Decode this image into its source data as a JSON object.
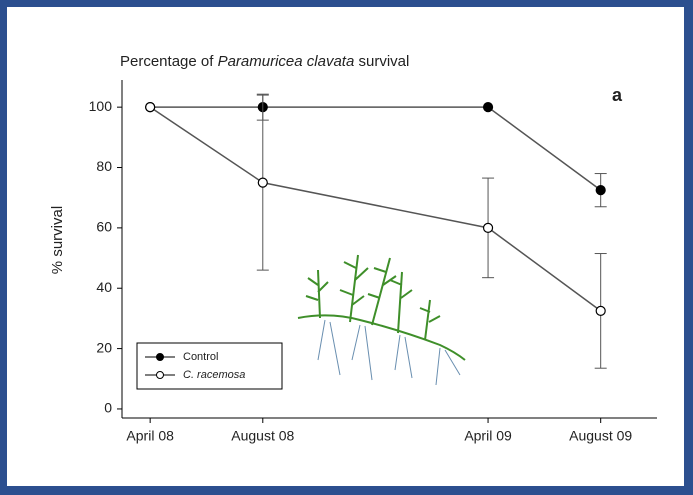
{
  "chart_data": {
    "type": "line",
    "title": [
      "Percentage of ",
      "Paramuricea clavata",
      " survival"
    ],
    "panel_label": "a",
    "y_label": "% survival",
    "x": [
      "2008-04",
      "2008-08",
      "2009-04",
      "2009-08"
    ],
    "xlim": [
      "2008-03",
      "2009-10"
    ],
    "xticks": [
      {
        "value": "2008-04",
        "label": "April 08"
      },
      {
        "value": "2008-08",
        "label": "August 08"
      },
      {
        "value": "2009-04",
        "label": "April 09"
      },
      {
        "value": "2009-08",
        "label": "August 09"
      }
    ],
    "ylim": [
      -3,
      109
    ],
    "yticks": [
      0,
      20,
      40,
      60,
      80,
      100
    ],
    "legend": "lower left",
    "series": [
      {
        "name": "Control",
        "color": "#000000",
        "marker_fill": "#000000",
        "values": [
          100,
          100,
          100,
          72.5
        ],
        "errors": [
          null,
          4.3,
          null,
          5.5
        ]
      },
      {
        "name": "C. racemosa",
        "color": "#000000",
        "marker_fill": "#ffffff",
        "values": [
          100,
          75,
          60,
          32.5
        ],
        "errors": [
          null,
          29,
          16.5,
          19
        ]
      }
    ]
  }
}
